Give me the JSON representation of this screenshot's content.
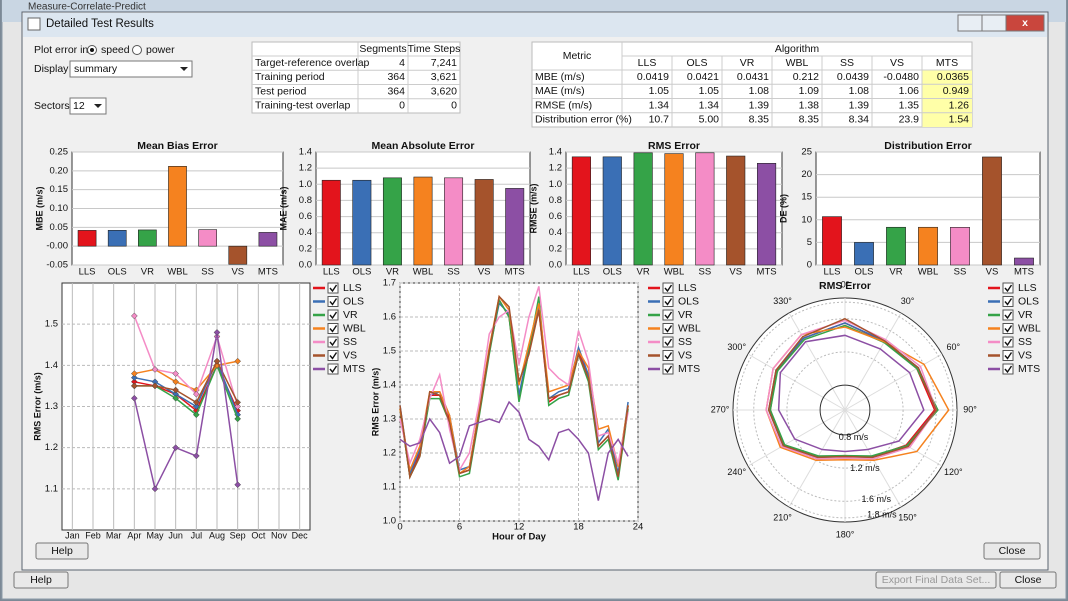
{
  "window": {
    "background_title": "Measure-Correlate-Predict",
    "title": "Detailed Test Results"
  },
  "controls": {
    "plot_error_label": "Plot error in",
    "speed": "speed",
    "power": "power",
    "display_label": "Display",
    "display_value": "summary",
    "sectors_label": "Sectors",
    "sectors_value": 12
  },
  "periods_table": {
    "headers": [
      "Segments",
      "Time Steps"
    ],
    "rows": [
      [
        "Target-reference overlap",
        4,
        "7,241"
      ],
      [
        "Training period",
        364,
        "3,621"
      ],
      [
        "Test period",
        364,
        "3,620"
      ],
      [
        "Training-test overlap",
        0,
        0
      ]
    ]
  },
  "metrics_table": {
    "metric_header": "Metric",
    "algorithm_header": "Algorithm",
    "rows": [
      "MBE (m/s)",
      "MAE (m/s)",
      "RMSE (m/s)",
      "Distribution error (%)"
    ]
  },
  "buttons": {
    "help": "Help",
    "close": "Close",
    "outer_help": "Help",
    "export": "Export Final Data Set...",
    "outer_close": "Close"
  },
  "chart_data": [
    {
      "type": "bar",
      "title": "Mean Bias Error",
      "ylabel": "MBE (m/s)",
      "categories": [
        "LLS",
        "OLS",
        "VR",
        "WBL",
        "SS",
        "VS",
        "MTS"
      ],
      "values": [
        0.0419,
        0.0421,
        0.0431,
        0.212,
        0.0439,
        -0.048,
        0.0365
      ],
      "value_labels": [
        "0.0419",
        "0.0421",
        "0.0431",
        "0.212",
        "0.0439",
        "-0.0480",
        "0.0365"
      ],
      "colors": [
        "#e3141c",
        "#3a6fb5",
        "#35a348",
        "#f5821f",
        "#f48cc6",
        "#a5532c",
        "#8c4fa4"
      ],
      "ylim": [
        -0.05,
        0.25
      ],
      "yticks": [
        -0.05,
        {
          "value": 0,
          "label": "-0.00"
        },
        0.05,
        {
          "value": 0.1,
          "label": "0.10"
        },
        0.15,
        {
          "value": 0.2,
          "label": "0.20"
        },
        0.25
      ],
      "grid": true
    },
    {
      "type": "bar",
      "title": "Mean Absolute Error",
      "ylabel": "MAE (m/s)",
      "categories": [
        "LLS",
        "OLS",
        "VR",
        "WBL",
        "SS",
        "VS",
        "MTS"
      ],
      "values": [
        1.05,
        1.05,
        1.08,
        1.09,
        1.08,
        1.06,
        0.949
      ],
      "value_labels": [
        "1.05",
        "1.05",
        "1.08",
        "1.09",
        "1.08",
        "1.06",
        "0.949"
      ],
      "colors": [
        "#e3141c",
        "#3a6fb5",
        "#35a348",
        "#f5821f",
        "#f48cc6",
        "#a5532c",
        "#8c4fa4"
      ],
      "ylim": [
        0,
        1.4
      ],
      "yticks": [
        {
          "value": 0,
          "label": "0.0"
        },
        0.2,
        0.4,
        0.6,
        0.8,
        {
          "value": 1,
          "label": "1.0"
        },
        1.2,
        1.4
      ],
      "grid": true
    },
    {
      "type": "bar",
      "title": "RMS Error",
      "ylabel": "RMSE (m/s)",
      "categories": [
        "LLS",
        "OLS",
        "VR",
        "WBL",
        "SS",
        "VS",
        "MTS"
      ],
      "values": [
        1.34,
        1.34,
        1.39,
        1.38,
        1.39,
        1.35,
        1.26
      ],
      "value_labels": [
        "1.34",
        "1.34",
        "1.39",
        "1.38",
        "1.39",
        "1.35",
        "1.26"
      ],
      "colors": [
        "#e3141c",
        "#3a6fb5",
        "#35a348",
        "#f5821f",
        "#f48cc6",
        "#a5532c",
        "#8c4fa4"
      ],
      "ylim": [
        0,
        1.4
      ],
      "yticks": [
        {
          "value": 0,
          "label": "0.0"
        },
        0.2,
        0.4,
        0.6,
        0.8,
        {
          "value": 1,
          "label": "1.0"
        },
        1.2,
        1.4
      ],
      "grid": true
    },
    {
      "type": "bar",
      "title": "Distribution Error",
      "ylabel": "DE (%)",
      "categories": [
        "LLS",
        "OLS",
        "VR",
        "WBL",
        "SS",
        "VS",
        "MTS"
      ],
      "values": [
        10.7,
        5,
        8.35,
        8.35,
        8.34,
        23.9,
        1.54
      ],
      "value_labels": [
        "10.7",
        "5.00",
        "8.35",
        "8.35",
        "8.34",
        "23.9",
        "1.54"
      ],
      "colors": [
        "#e3141c",
        "#3a6fb5",
        "#35a348",
        "#f5821f",
        "#f48cc6",
        "#a5532c",
        "#8c4fa4"
      ],
      "ylim": [
        0,
        25
      ],
      "yticks": [
        0,
        5,
        10,
        15,
        20,
        25
      ],
      "grid": true
    },
    {
      "type": "line",
      "ylabel": "RMS Error (m/s)",
      "categories": [
        "Jan",
        "Feb",
        "Mar",
        "Apr",
        "May",
        "Jun",
        "Jul",
        "Aug",
        "Sep",
        "Oct",
        "Nov",
        "Dec"
      ],
      "ylim": [
        1.0,
        1.6
      ],
      "yticks": [
        1.1,
        1.2,
        1.3,
        1.4,
        1.5
      ],
      "grid": true,
      "markers": true,
      "series": [
        {
          "name": "LLS",
          "color": "#e3141c",
          "values": [
            null,
            null,
            null,
            1.36,
            1.35,
            1.33,
            1.29,
            1.4,
            1.29,
            null,
            null,
            null
          ]
        },
        {
          "name": "OLS",
          "color": "#3a6fb5",
          "values": [
            null,
            null,
            null,
            1.37,
            1.36,
            1.33,
            1.3,
            1.41,
            1.28,
            null,
            null,
            null
          ]
        },
        {
          "name": "VR",
          "color": "#35a348",
          "values": [
            null,
            null,
            null,
            1.35,
            1.35,
            1.32,
            1.28,
            1.4,
            1.27,
            null,
            null,
            null
          ]
        },
        {
          "name": "WBL",
          "color": "#f5821f",
          "values": [
            null,
            null,
            null,
            1.38,
            1.39,
            1.36,
            1.34,
            1.4,
            1.41,
            null,
            null,
            null
          ]
        },
        {
          "name": "SS",
          "color": "#f48cc6",
          "values": [
            null,
            null,
            null,
            1.52,
            1.39,
            1.38,
            1.33,
            1.47,
            1.3,
            null,
            null,
            null
          ]
        },
        {
          "name": "VS",
          "color": "#a5532c",
          "values": [
            null,
            null,
            null,
            1.35,
            1.35,
            1.34,
            1.31,
            1.41,
            1.31,
            null,
            null,
            null
          ]
        },
        {
          "name": "MTS",
          "color": "#8c4fa4",
          "values": [
            null,
            null,
            null,
            1.32,
            1.1,
            1.2,
            1.18,
            1.48,
            1.11,
            null,
            null,
            null
          ]
        }
      ]
    },
    {
      "type": "line",
      "ylabel": "RMS Error (m/s)",
      "xlabel": "Hour of Day",
      "x": [
        0,
        1,
        2,
        3,
        4,
        5,
        6,
        7,
        8,
        9,
        10,
        11,
        12,
        13,
        14,
        15,
        16,
        17,
        18,
        19,
        20,
        21,
        22,
        23
      ],
      "xlim": [
        0,
        24
      ],
      "xticks": [
        0,
        6,
        12,
        18,
        24
      ],
      "ylim": [
        1.0,
        1.7
      ],
      "yticks": [
        {
          "value": 1,
          "label": "1.0"
        },
        1.1,
        1.2,
        1.3,
        1.4,
        1.5,
        1.6,
        1.7
      ],
      "grid": true,
      "markers": false,
      "series": [
        {
          "name": "LLS",
          "color": "#e3141c",
          "values": [
            1.33,
            1.13,
            1.2,
            1.37,
            1.37,
            1.3,
            1.14,
            1.15,
            1.32,
            1.5,
            1.65,
            1.6,
            1.36,
            1.5,
            1.62,
            1.35,
            1.37,
            1.38,
            1.5,
            1.42,
            1.22,
            1.25,
            1.13,
            1.34
          ]
        },
        {
          "name": "OLS",
          "color": "#3a6fb5",
          "values": [
            1.34,
            1.14,
            1.21,
            1.37,
            1.38,
            1.31,
            1.15,
            1.16,
            1.33,
            1.5,
            1.64,
            1.61,
            1.37,
            1.51,
            1.63,
            1.36,
            1.38,
            1.39,
            1.51,
            1.43,
            1.23,
            1.27,
            1.14,
            1.35
          ]
        },
        {
          "name": "VR",
          "color": "#35a348",
          "values": [
            1.33,
            1.13,
            1.19,
            1.36,
            1.36,
            1.29,
            1.13,
            1.14,
            1.31,
            1.49,
            1.65,
            1.6,
            1.35,
            1.5,
            1.66,
            1.34,
            1.36,
            1.37,
            1.49,
            1.41,
            1.21,
            1.24,
            1.12,
            1.33
          ]
        },
        {
          "name": "WBL",
          "color": "#f5821f",
          "values": [
            1.33,
            1.15,
            1.22,
            1.38,
            1.38,
            1.31,
            1.14,
            1.16,
            1.33,
            1.51,
            1.66,
            1.62,
            1.4,
            1.52,
            1.64,
            1.38,
            1.39,
            1.4,
            1.5,
            1.45,
            1.27,
            1.28,
            1.16,
            1.34
          ]
        },
        {
          "name": "SS",
          "color": "#f48cc6",
          "values": [
            1.3,
            1.17,
            1.24,
            1.36,
            1.43,
            1.27,
            1.15,
            1.2,
            1.35,
            1.55,
            1.6,
            1.62,
            1.46,
            1.6,
            1.69,
            1.45,
            1.42,
            1.4,
            1.56,
            1.47,
            1.25,
            1.26,
            1.17,
            1.32
          ]
        },
        {
          "name": "VS",
          "color": "#a5532c",
          "values": [
            1.34,
            1.13,
            1.19,
            1.38,
            1.37,
            1.29,
            1.14,
            1.15,
            1.32,
            1.5,
            1.66,
            1.63,
            1.41,
            1.49,
            1.62,
            1.36,
            1.37,
            1.38,
            1.49,
            1.42,
            1.22,
            1.25,
            1.13,
            1.34
          ]
        },
        {
          "name": "MTS",
          "color": "#8c4fa4",
          "values": [
            1.24,
            1.22,
            1.23,
            1.3,
            1.26,
            1.17,
            1.19,
            1.28,
            1.29,
            1.3,
            1.29,
            1.35,
            1.32,
            1.24,
            1.22,
            1.18,
            1.26,
            1.27,
            1.24,
            1.2,
            1.06,
            1.2,
            1.24,
            1.19
          ]
        }
      ]
    },
    {
      "type": "polar",
      "title": "RMS Error",
      "categories": [
        "0°",
        "30°",
        "60°",
        "90°",
        "120°",
        "150°",
        "180°",
        "210°",
        "240°",
        "270°",
        "300°",
        "330°"
      ],
      "rlim": [
        0.5,
        1.85
      ],
      "rticks": [
        {
          "value": 0.8,
          "label": "0.8 m/s"
        },
        {
          "value": 1.2,
          "label": "1.2 m/s"
        },
        {
          "value": 1.6,
          "label": "1.6 m/s"
        },
        {
          "value": 1.8,
          "label": "1.8 m/s"
        }
      ],
      "series": [
        {
          "name": "LLS",
          "color": "#e3141c",
          "values": [
            1.55,
            1.45,
            1.5,
            1.58,
            1.35,
            1.15,
            1.05,
            1.15,
            1.35,
            1.4,
            1.45,
            1.5
          ]
        },
        {
          "name": "OLS",
          "color": "#3a6fb5",
          "values": [
            1.55,
            1.46,
            1.52,
            1.6,
            1.37,
            1.16,
            1.06,
            1.16,
            1.36,
            1.42,
            1.46,
            1.5
          ]
        },
        {
          "name": "VR",
          "color": "#35a348",
          "values": [
            1.52,
            1.44,
            1.5,
            1.62,
            1.36,
            1.14,
            1.05,
            1.14,
            1.34,
            1.4,
            1.44,
            1.48
          ]
        },
        {
          "name": "WBL",
          "color": "#f5821f",
          "values": [
            1.5,
            1.45,
            1.6,
            1.75,
            1.5,
            1.2,
            1.1,
            1.2,
            1.4,
            1.45,
            1.5,
            1.55
          ]
        },
        {
          "name": "SS",
          "color": "#f48cc6",
          "values": [
            1.58,
            1.48,
            1.55,
            1.6,
            1.4,
            1.18,
            1.08,
            1.18,
            1.38,
            1.45,
            1.5,
            1.55
          ]
        },
        {
          "name": "VS",
          "color": "#a5532c",
          "values": [
            1.6,
            1.46,
            1.52,
            1.6,
            1.38,
            1.16,
            1.06,
            1.16,
            1.36,
            1.42,
            1.46,
            1.52
          ]
        },
        {
          "name": "MTS",
          "color": "#8c4fa4",
          "values": [
            1.4,
            1.35,
            1.4,
            1.45,
            1.25,
            1.05,
            1.0,
            1.05,
            1.2,
            1.3,
            1.4,
            1.45
          ]
        }
      ]
    }
  ]
}
